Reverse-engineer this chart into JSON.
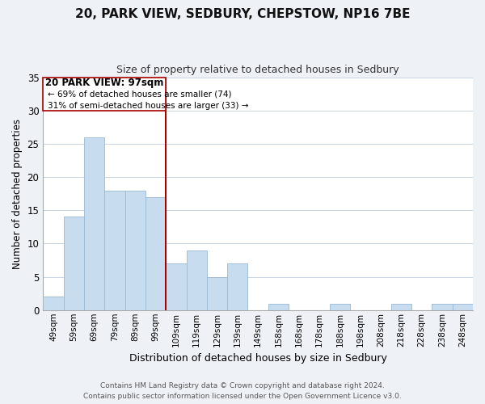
{
  "title": "20, PARK VIEW, SEDBURY, CHEPSTOW, NP16 7BE",
  "subtitle": "Size of property relative to detached houses in Sedbury",
  "xlabel": "Distribution of detached houses by size in Sedbury",
  "ylabel": "Number of detached properties",
  "bar_color": "#c8dcf0",
  "bar_edge_color": "#9ab8d4",
  "bins": [
    "49sqm",
    "59sqm",
    "69sqm",
    "79sqm",
    "89sqm",
    "99sqm",
    "109sqm",
    "119sqm",
    "129sqm",
    "139sqm",
    "149sqm",
    "158sqm",
    "168sqm",
    "178sqm",
    "188sqm",
    "198sqm",
    "208sqm",
    "218sqm",
    "228sqm",
    "238sqm",
    "248sqm"
  ],
  "values": [
    2,
    14,
    26,
    18,
    18,
    17,
    7,
    9,
    5,
    7,
    0,
    1,
    0,
    0,
    1,
    0,
    0,
    1,
    0,
    1,
    1
  ],
  "ylim": [
    0,
    35
  ],
  "yticks": [
    0,
    5,
    10,
    15,
    20,
    25,
    30,
    35
  ],
  "vline_bin_index": 5,
  "vline_color": "#aa0000",
  "annotation_title": "20 PARK VIEW: 97sqm",
  "annotation_line1": "← 69% of detached houses are smaller (74)",
  "annotation_line2": "31% of semi-detached houses are larger (33) →",
  "annotation_box_facecolor": "#ffffff",
  "annotation_box_edgecolor": "#aa0000",
  "footer1": "Contains HM Land Registry data © Crown copyright and database right 2024.",
  "footer2": "Contains public sector information licensed under the Open Government Licence v3.0.",
  "bg_color": "#eef2f7",
  "plot_bg_color": "#ffffff",
  "grid_color": "#c8d4e0"
}
